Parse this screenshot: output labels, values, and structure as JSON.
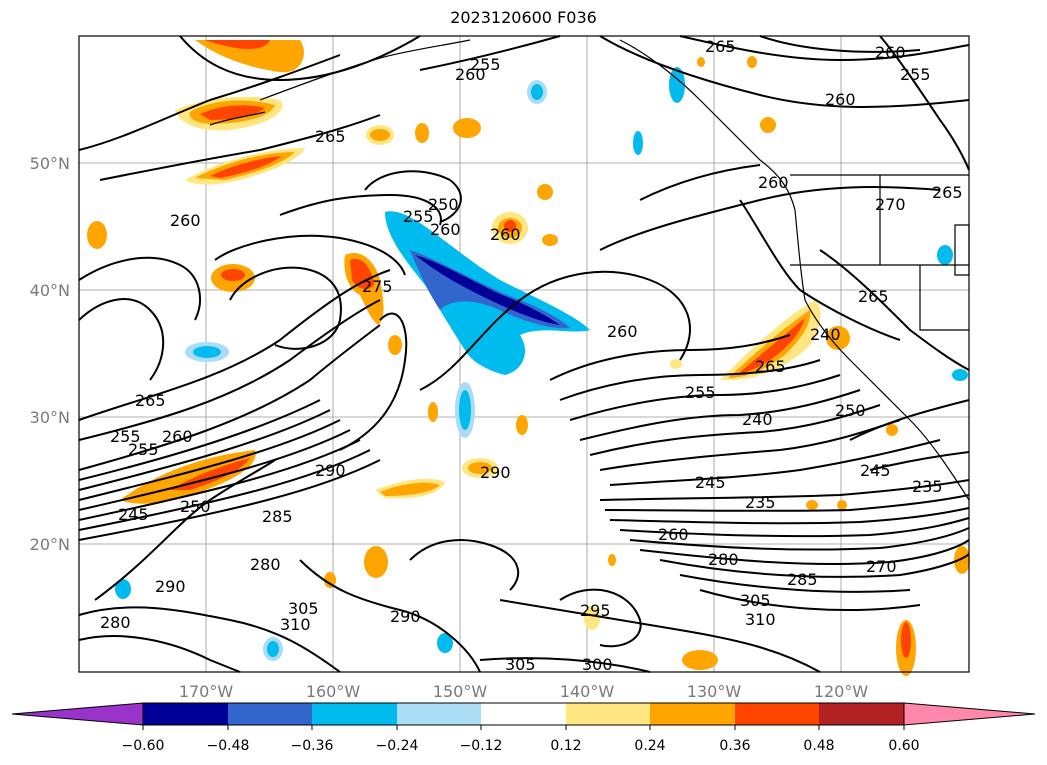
{
  "title": "2023120600 F036",
  "axes": {
    "lon_ticks": [
      "170°W",
      "160°W",
      "150°W",
      "140°W",
      "130°W",
      "120°W"
    ],
    "lat_ticks": [
      "50°N",
      "40°N",
      "30°N",
      "20°N"
    ]
  },
  "contour_labels": [
    {
      "text": "265",
      "id": "c1"
    },
    {
      "text": "260",
      "id": "c2"
    },
    {
      "text": "255",
      "id": "c3"
    },
    {
      "text": "260",
      "id": "c4"
    },
    {
      "text": "255",
      "id": "c5"
    },
    {
      "text": "265",
      "id": "c6"
    },
    {
      "text": "260",
      "id": "c7"
    },
    {
      "text": "250",
      "id": "c8"
    },
    {
      "text": "255",
      "id": "c9"
    },
    {
      "text": "260",
      "id": "c10"
    },
    {
      "text": "260",
      "id": "c11"
    },
    {
      "text": "275",
      "id": "c12"
    },
    {
      "text": "260",
      "id": "c13"
    },
    {
      "text": "260",
      "id": "c14"
    },
    {
      "text": "265",
      "id": "c15"
    },
    {
      "text": "270",
      "id": "c16"
    },
    {
      "text": "265",
      "id": "c17"
    },
    {
      "text": "260",
      "id": "c18"
    },
    {
      "text": "265",
      "id": "c19"
    },
    {
      "text": "255",
      "id": "c20"
    },
    {
      "text": "260",
      "id": "c21"
    },
    {
      "text": "255",
      "id": "c22"
    },
    {
      "text": "250",
      "id": "c23"
    },
    {
      "text": "240",
      "id": "c24"
    },
    {
      "text": "245",
      "id": "c25"
    },
    {
      "text": "235",
      "id": "c26"
    },
    {
      "text": "290",
      "id": "c27"
    },
    {
      "text": "290",
      "id": "c28"
    },
    {
      "text": "285",
      "id": "c29"
    },
    {
      "text": "245",
      "id": "c30"
    },
    {
      "text": "235",
      "id": "c31"
    },
    {
      "text": "260",
      "id": "c32"
    },
    {
      "text": "280",
      "id": "c33"
    },
    {
      "text": "285",
      "id": "c34"
    },
    {
      "text": "270",
      "id": "c35"
    },
    {
      "text": "290",
      "id": "c36"
    },
    {
      "text": "280",
      "id": "c37"
    },
    {
      "text": "305",
      "id": "c38"
    },
    {
      "text": "310",
      "id": "c39"
    },
    {
      "text": "290",
      "id": "c40"
    },
    {
      "text": "295",
      "id": "c41"
    },
    {
      "text": "305",
      "id": "c42"
    },
    {
      "text": "310",
      "id": "c43"
    },
    {
      "text": "300",
      "id": "c44"
    },
    {
      "text": "305",
      "id": "c45"
    },
    {
      "text": "280",
      "id": "c46"
    },
    {
      "text": "265",
      "id": "c47"
    },
    {
      "text": "245",
      "id": "c48"
    },
    {
      "text": "250",
      "id": "c49"
    },
    {
      "text": "240",
      "id": "c50"
    },
    {
      "text": "255",
      "id": "c51"
    }
  ],
  "colorbar": {
    "ticks": [
      "−0.60",
      "−0.48",
      "−0.36",
      "−0.24",
      "−0.12",
      "0.12",
      "0.24",
      "0.36",
      "0.48",
      "0.60"
    ],
    "colors": [
      "#9933cc",
      "#000099",
      "#3366cc",
      "#00bbee",
      "#aaddf5",
      "#ffffff",
      "#ffe680",
      "#ffa500",
      "#ff4400",
      "#b22222",
      "#ff88aa"
    ]
  }
}
